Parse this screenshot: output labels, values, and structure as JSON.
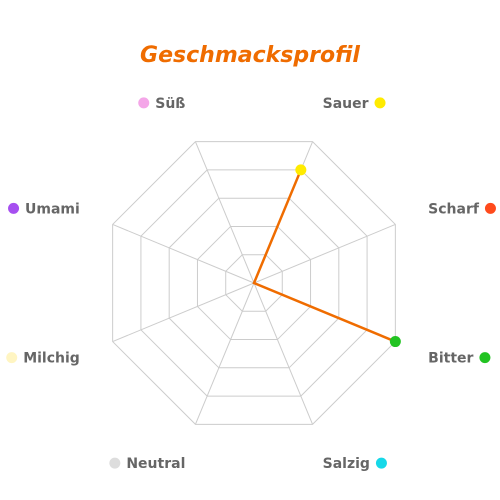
{
  "colors": {
    "title": "#ef6c00",
    "grid": "#cccccc",
    "series_stroke": "#ef6c00",
    "series_fill": "#fbc9a0"
  },
  "chart_data": {
    "type": "radar",
    "title": "Geschmacksprofil",
    "categories": [
      "Süß",
      "Sauer",
      "Scharf",
      "Bitter",
      "Salzig",
      "Neutral",
      "Milchig",
      "Umami"
    ],
    "category_colors": [
      "#f4a6e8",
      "#ffeb00",
      "#ff4a1c",
      "#22c322",
      "#16d8e8",
      "#dddddd",
      "#fff5c2",
      "#a64ff0"
    ],
    "rlim": [
      0,
      5
    ],
    "grid_levels": 5,
    "series": [
      {
        "values": [
          0,
          4,
          0,
          5,
          0,
          0,
          0,
          0
        ]
      }
    ],
    "grid": true,
    "legend": "none"
  }
}
